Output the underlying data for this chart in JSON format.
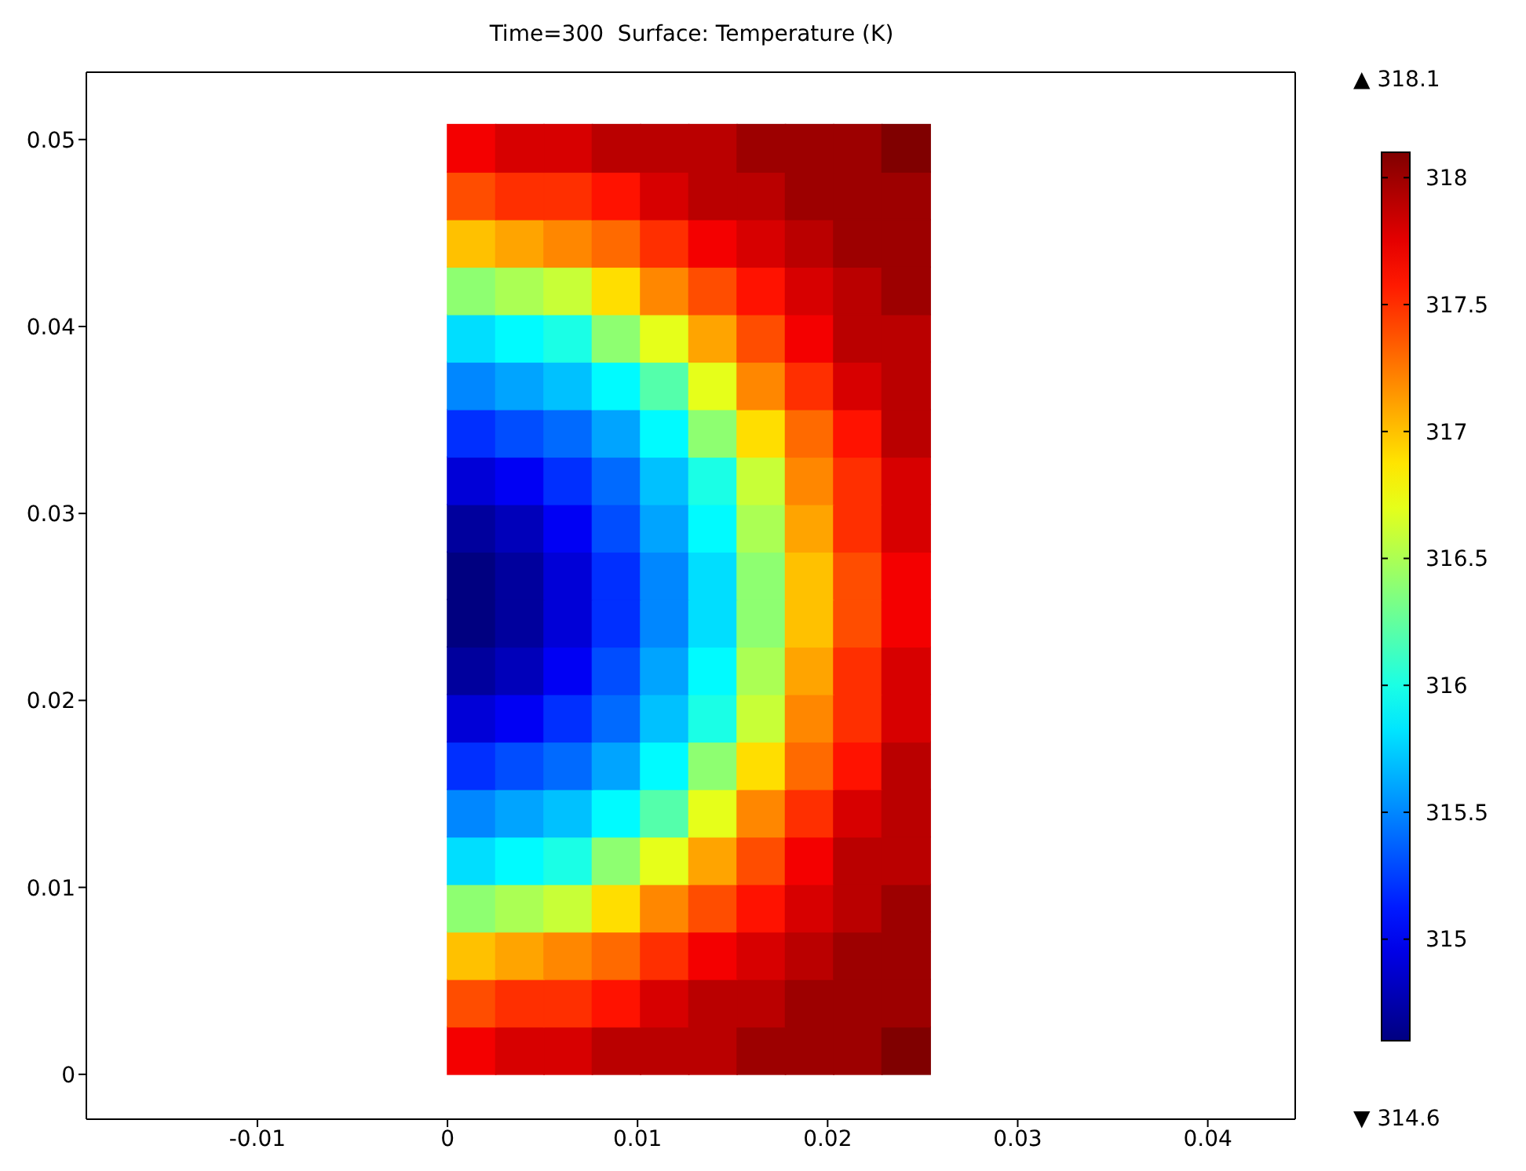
{
  "chart_data": {
    "type": "scatter",
    "title": "Time=300  Surface: Temperature (K)",
    "marker": "square",
    "xlim": [
      -0.019,
      0.0446
    ],
    "xticks": [
      -0.01,
      0,
      0.01,
      0.02,
      0.03,
      0.04
    ],
    "ylim": [
      -0.0024,
      0.0536
    ],
    "yticks": [
      0,
      0.01,
      0.02,
      0.03,
      0.04,
      0.05
    ],
    "clim": [
      314.6,
      318.1
    ],
    "cticks": [
      315,
      315.5,
      316,
      316.5,
      317,
      317.5,
      318
    ],
    "annotations": [
      "▲ 318.1",
      "▼ 314.6"
    ],
    "series": [
      {
        "x": [
          0.00127,
          0.00381,
          0.00635,
          0.00889,
          0.01143,
          0.01397,
          0.01651,
          0.01905,
          0.02159,
          0.02413
        ],
        "values": [
          0.00127,
          0.00127,
          0.00127,
          0.00127,
          0.00127,
          0.00127,
          0.00127,
          0.00127,
          0.00127,
          0.00127
        ],
        "cvalues": [
          317.7,
          317.8,
          317.8,
          317.9,
          317.9,
          317.9,
          318.0,
          318.0,
          318.0,
          318.1
        ],
        "colors": [
          "#f40000",
          "#d70000",
          "#d70000",
          "#ba0000",
          "#ba0000",
          "#ba0000",
          "#9d0000",
          "#9d0000",
          "#9d0000",
          "#800000"
        ]
      },
      {
        "x": [
          0.00127,
          0.00381,
          0.00635,
          0.00889,
          0.01143,
          0.01397,
          0.01651,
          0.01905,
          0.02159,
          0.02413
        ],
        "values": [
          0.00381,
          0.00381,
          0.00381,
          0.00381,
          0.00381,
          0.00381,
          0.00381,
          0.00381,
          0.00381,
          0.00381
        ],
        "cvalues": [
          317.4,
          317.5,
          317.5,
          317.6,
          317.8,
          317.9,
          317.9,
          318.0,
          318.0,
          318.0
        ],
        "colors": [
          "#ff4d00",
          "#ff2f00",
          "#ff2f00",
          "#ff1200",
          "#d70000",
          "#ba0000",
          "#ba0000",
          "#9d0000",
          "#9d0000",
          "#9d0000"
        ]
      },
      {
        "x": [
          0.00127,
          0.00381,
          0.00635,
          0.00889,
          0.01143,
          0.01397,
          0.01651,
          0.01905,
          0.02159,
          0.02413
        ],
        "values": [
          0.00635,
          0.00635,
          0.00635,
          0.00635,
          0.00635,
          0.00635,
          0.00635,
          0.00635,
          0.00635,
          0.00635
        ],
        "cvalues": [
          317.0,
          317.1,
          317.2,
          317.3,
          317.5,
          317.7,
          317.8,
          317.9,
          318.0,
          318.0
        ],
        "colors": [
          "#ffc100",
          "#ffa400",
          "#ff8700",
          "#ff6a00",
          "#ff2f00",
          "#f40000",
          "#d70000",
          "#ba0000",
          "#9d0000",
          "#9d0000"
        ]
      },
      {
        "x": [
          0.00127,
          0.00381,
          0.00635,
          0.00889,
          0.01143,
          0.01397,
          0.01651,
          0.01905,
          0.02159,
          0.02413
        ],
        "values": [
          0.00889,
          0.00889,
          0.00889,
          0.00889,
          0.00889,
          0.00889,
          0.00889,
          0.00889,
          0.00889,
          0.00889
        ],
        "cvalues": [
          316.4,
          316.5,
          316.6,
          316.9,
          317.2,
          317.4,
          317.6,
          317.8,
          317.9,
          318.0
        ],
        "colors": [
          "#8eff71",
          "#abff54",
          "#c8ff37",
          "#ffde00",
          "#ff8700",
          "#ff4d00",
          "#ff1200",
          "#d70000",
          "#ba0000",
          "#9d0000"
        ]
      },
      {
        "x": [
          0.00127,
          0.00381,
          0.00635,
          0.00889,
          0.01143,
          0.01397,
          0.01651,
          0.01905,
          0.02159,
          0.02413
        ],
        "values": [
          0.01143,
          0.01143,
          0.01143,
          0.01143,
          0.01143,
          0.01143,
          0.01143,
          0.01143,
          0.01143,
          0.01143
        ],
        "cvalues": [
          315.8,
          315.9,
          316.0,
          316.4,
          316.7,
          317.1,
          317.4,
          317.7,
          317.9,
          317.9
        ],
        "colors": [
          "#00deff",
          "#00fbff",
          "#1affe6",
          "#8eff71",
          "#e6ff1a",
          "#ffa400",
          "#ff4d00",
          "#f40000",
          "#ba0000",
          "#ba0000"
        ]
      },
      {
        "x": [
          0.00127,
          0.00381,
          0.00635,
          0.00889,
          0.01143,
          0.01397,
          0.01651,
          0.01905,
          0.02159,
          0.02413
        ],
        "values": [
          0.01397,
          0.01397,
          0.01397,
          0.01397,
          0.01397,
          0.01397,
          0.01397,
          0.01397,
          0.01397,
          0.01397
        ],
        "cvalues": [
          315.5,
          315.6,
          315.7,
          315.9,
          316.2,
          316.7,
          317.2,
          317.5,
          317.8,
          317.9
        ],
        "colors": [
          "#0087ff",
          "#00a4ff",
          "#00c1ff",
          "#00fbff",
          "#54ffab",
          "#e6ff1a",
          "#ff8700",
          "#ff2f00",
          "#d70000",
          "#ba0000"
        ]
      },
      {
        "x": [
          0.00127,
          0.00381,
          0.00635,
          0.00889,
          0.01143,
          0.01397,
          0.01651,
          0.01905,
          0.02159,
          0.02413
        ],
        "values": [
          0.01651,
          0.01651,
          0.01651,
          0.01651,
          0.01651,
          0.01651,
          0.01651,
          0.01651,
          0.01651,
          0.01651
        ],
        "cvalues": [
          315.2,
          315.3,
          315.4,
          315.6,
          315.9,
          316.4,
          316.9,
          317.3,
          317.6,
          317.9
        ],
        "colors": [
          "#002fff",
          "#004dff",
          "#006aff",
          "#00a4ff",
          "#00fbff",
          "#8eff71",
          "#ffde00",
          "#ff6a00",
          "#ff1200",
          "#ba0000"
        ]
      },
      {
        "x": [
          0.00127,
          0.00381,
          0.00635,
          0.00889,
          0.01143,
          0.01397,
          0.01651,
          0.01905,
          0.02159,
          0.02413
        ],
        "values": [
          0.01905,
          0.01905,
          0.01905,
          0.01905,
          0.01905,
          0.01905,
          0.01905,
          0.01905,
          0.01905,
          0.01905
        ],
        "cvalues": [
          314.9,
          315.0,
          315.2,
          315.4,
          315.7,
          316.0,
          316.6,
          317.2,
          317.5,
          317.8
        ],
        "colors": [
          "#0000d7",
          "#0000f4",
          "#002fff",
          "#006aff",
          "#00c1ff",
          "#1affe6",
          "#c8ff37",
          "#ff8700",
          "#ff2f00",
          "#d70000"
        ]
      },
      {
        "x": [
          0.00127,
          0.00381,
          0.00635,
          0.00889,
          0.01143,
          0.01397,
          0.01651,
          0.01905,
          0.02159,
          0.02413
        ],
        "values": [
          0.02159,
          0.02159,
          0.02159,
          0.02159,
          0.02159,
          0.02159,
          0.02159,
          0.02159,
          0.02159,
          0.02159
        ],
        "cvalues": [
          314.7,
          314.8,
          315.0,
          315.3,
          315.6,
          315.9,
          316.5,
          317.1,
          317.5,
          317.8
        ],
        "colors": [
          "#00009d",
          "#0000ba",
          "#0000f4",
          "#004dff",
          "#00a4ff",
          "#00fbff",
          "#abff54",
          "#ffa400",
          "#ff2f00",
          "#d70000"
        ]
      },
      {
        "x": [
          0.00127,
          0.00381,
          0.00635,
          0.00889,
          0.01143,
          0.01397,
          0.01651,
          0.01905,
          0.02159,
          0.02413
        ],
        "values": [
          0.02413,
          0.02413,
          0.02413,
          0.02413,
          0.02413,
          0.02413,
          0.02413,
          0.02413,
          0.02413,
          0.02413
        ],
        "cvalues": [
          314.6,
          314.7,
          314.9,
          315.2,
          315.5,
          315.8,
          316.4,
          317.0,
          317.4,
          317.7
        ],
        "colors": [
          "#000080",
          "#00009d",
          "#0000d7",
          "#002fff",
          "#0087ff",
          "#00deff",
          "#8eff71",
          "#ffc100",
          "#ff4d00",
          "#f40000"
        ]
      },
      {
        "x": [
          0.00127,
          0.00381,
          0.00635,
          0.00889,
          0.01143,
          0.01397,
          0.01651,
          0.01905,
          0.02159,
          0.02413
        ],
        "values": [
          0.02667,
          0.02667,
          0.02667,
          0.02667,
          0.02667,
          0.02667,
          0.02667,
          0.02667,
          0.02667,
          0.02667
        ],
        "cvalues": [
          314.6,
          314.7,
          314.9,
          315.2,
          315.5,
          315.8,
          316.4,
          317.0,
          317.4,
          317.7
        ],
        "colors": [
          "#000080",
          "#00009d",
          "#0000d7",
          "#002fff",
          "#0087ff",
          "#00deff",
          "#8eff71",
          "#ffc100",
          "#ff4d00",
          "#f40000"
        ]
      },
      {
        "x": [
          0.00127,
          0.00381,
          0.00635,
          0.00889,
          0.01143,
          0.01397,
          0.01651,
          0.01905,
          0.02159,
          0.02413
        ],
        "values": [
          0.02921,
          0.02921,
          0.02921,
          0.02921,
          0.02921,
          0.02921,
          0.02921,
          0.02921,
          0.02921,
          0.02921
        ],
        "cvalues": [
          314.7,
          314.8,
          315.0,
          315.3,
          315.6,
          315.9,
          316.5,
          317.1,
          317.5,
          317.8
        ],
        "colors": [
          "#00009d",
          "#0000ba",
          "#0000f4",
          "#004dff",
          "#00a4ff",
          "#00fbff",
          "#abff54",
          "#ffa400",
          "#ff2f00",
          "#d70000"
        ]
      },
      {
        "x": [
          0.00127,
          0.00381,
          0.00635,
          0.00889,
          0.01143,
          0.01397,
          0.01651,
          0.01905,
          0.02159,
          0.02413
        ],
        "values": [
          0.03175,
          0.03175,
          0.03175,
          0.03175,
          0.03175,
          0.03175,
          0.03175,
          0.03175,
          0.03175,
          0.03175
        ],
        "cvalues": [
          314.9,
          315.0,
          315.2,
          315.4,
          315.7,
          316.0,
          316.6,
          317.2,
          317.5,
          317.8
        ],
        "colors": [
          "#0000d7",
          "#0000f4",
          "#002fff",
          "#006aff",
          "#00c1ff",
          "#1affe6",
          "#c8ff37",
          "#ff8700",
          "#ff2f00",
          "#d70000"
        ]
      },
      {
        "x": [
          0.00127,
          0.00381,
          0.00635,
          0.00889,
          0.01143,
          0.01397,
          0.01651,
          0.01905,
          0.02159,
          0.02413
        ],
        "values": [
          0.03429,
          0.03429,
          0.03429,
          0.03429,
          0.03429,
          0.03429,
          0.03429,
          0.03429,
          0.03429,
          0.03429
        ],
        "cvalues": [
          315.2,
          315.3,
          315.4,
          315.6,
          315.9,
          316.4,
          316.9,
          317.3,
          317.6,
          317.9
        ],
        "colors": [
          "#002fff",
          "#004dff",
          "#006aff",
          "#00a4ff",
          "#00fbff",
          "#8eff71",
          "#ffde00",
          "#ff6a00",
          "#ff1200",
          "#ba0000"
        ]
      },
      {
        "x": [
          0.00127,
          0.00381,
          0.00635,
          0.00889,
          0.01143,
          0.01397,
          0.01651,
          0.01905,
          0.02159,
          0.02413
        ],
        "values": [
          0.03683,
          0.03683,
          0.03683,
          0.03683,
          0.03683,
          0.03683,
          0.03683,
          0.03683,
          0.03683,
          0.03683
        ],
        "cvalues": [
          315.5,
          315.6,
          315.7,
          315.9,
          316.2,
          316.7,
          317.2,
          317.5,
          317.8,
          317.9
        ],
        "colors": [
          "#0087ff",
          "#00a4ff",
          "#00c1ff",
          "#00fbff",
          "#54ffab",
          "#e6ff1a",
          "#ff8700",
          "#ff2f00",
          "#d70000",
          "#ba0000"
        ]
      },
      {
        "x": [
          0.00127,
          0.00381,
          0.00635,
          0.00889,
          0.01143,
          0.01397,
          0.01651,
          0.01905,
          0.02159,
          0.02413
        ],
        "values": [
          0.03937,
          0.03937,
          0.03937,
          0.03937,
          0.03937,
          0.03937,
          0.03937,
          0.03937,
          0.03937,
          0.03937
        ],
        "cvalues": [
          315.8,
          315.9,
          316.0,
          316.4,
          316.7,
          317.1,
          317.4,
          317.7,
          317.9,
          317.9
        ],
        "colors": [
          "#00deff",
          "#00fbff",
          "#1affe6",
          "#8eff71",
          "#e6ff1a",
          "#ffa400",
          "#ff4d00",
          "#f40000",
          "#ba0000",
          "#ba0000"
        ]
      },
      {
        "x": [
          0.00127,
          0.00381,
          0.00635,
          0.00889,
          0.01143,
          0.01397,
          0.01651,
          0.01905,
          0.02159,
          0.02413
        ],
        "values": [
          0.04191,
          0.04191,
          0.04191,
          0.04191,
          0.04191,
          0.04191,
          0.04191,
          0.04191,
          0.04191,
          0.04191
        ],
        "cvalues": [
          316.4,
          316.5,
          316.6,
          316.9,
          317.2,
          317.4,
          317.6,
          317.8,
          317.9,
          318.0
        ],
        "colors": [
          "#8eff71",
          "#abff54",
          "#c8ff37",
          "#ffde00",
          "#ff8700",
          "#ff4d00",
          "#ff1200",
          "#d70000",
          "#ba0000",
          "#9d0000"
        ]
      },
      {
        "x": [
          0.00127,
          0.00381,
          0.00635,
          0.00889,
          0.01143,
          0.01397,
          0.01651,
          0.01905,
          0.02159,
          0.02413
        ],
        "values": [
          0.04445,
          0.04445,
          0.04445,
          0.04445,
          0.04445,
          0.04445,
          0.04445,
          0.04445,
          0.04445,
          0.04445
        ],
        "cvalues": [
          317.0,
          317.1,
          317.2,
          317.3,
          317.5,
          317.7,
          317.8,
          317.9,
          318.0,
          318.0
        ],
        "colors": [
          "#ffc100",
          "#ffa400",
          "#ff8700",
          "#ff6a00",
          "#ff2f00",
          "#f40000",
          "#d70000",
          "#ba0000",
          "#9d0000",
          "#9d0000"
        ]
      },
      {
        "x": [
          0.00127,
          0.00381,
          0.00635,
          0.00889,
          0.01143,
          0.01397,
          0.01651,
          0.01905,
          0.02159,
          0.02413
        ],
        "values": [
          0.04699,
          0.04699,
          0.04699,
          0.04699,
          0.04699,
          0.04699,
          0.04699,
          0.04699,
          0.04699,
          0.04699
        ],
        "cvalues": [
          317.4,
          317.5,
          317.5,
          317.6,
          317.8,
          317.9,
          317.9,
          318.0,
          318.0,
          318.0
        ],
        "colors": [
          "#ff4d00",
          "#ff2f00",
          "#ff2f00",
          "#ff1200",
          "#d70000",
          "#ba0000",
          "#ba0000",
          "#9d0000",
          "#9d0000",
          "#9d0000"
        ]
      },
      {
        "x": [
          0.00127,
          0.00381,
          0.00635,
          0.00889,
          0.01143,
          0.01397,
          0.01651,
          0.01905,
          0.02159,
          0.02413
        ],
        "values": [
          0.04953,
          0.04953,
          0.04953,
          0.04953,
          0.04953,
          0.04953,
          0.04953,
          0.04953,
          0.04953,
          0.04953
        ],
        "cvalues": [
          317.7,
          317.8,
          317.8,
          317.9,
          317.9,
          317.9,
          318.0,
          318.0,
          318.0,
          318.1
        ],
        "colors": [
          "#f40000",
          "#d70000",
          "#d70000",
          "#ba0000",
          "#ba0000",
          "#ba0000",
          "#9d0000",
          "#9d0000",
          "#9d0000",
          "#800000"
        ]
      }
    ]
  }
}
